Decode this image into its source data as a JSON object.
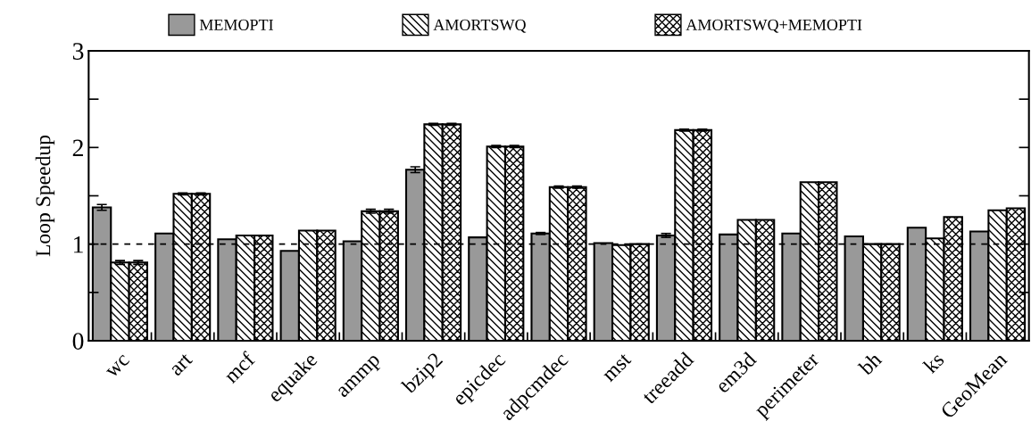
{
  "chart_data": {
    "type": "bar",
    "ylabel": "Loop Speedup",
    "categories": [
      "wc",
      "art",
      "mcf",
      "equake",
      "ammp",
      "bzip2",
      "epicdec",
      "adpcmdec",
      "mst",
      "treeadd",
      "em3d",
      "perimeter",
      "bh",
      "ks",
      "GeoMean"
    ],
    "series": [
      {
        "name": "MEMOPTI",
        "color": "#999999",
        "values": [
          1.38,
          1.11,
          1.05,
          0.93,
          1.03,
          1.77,
          1.07,
          1.11,
          1.01,
          1.09,
          1.1,
          1.11,
          1.08,
          1.17,
          1.13
        ],
        "errors": [
          0.03,
          null,
          null,
          null,
          null,
          0.03,
          null,
          0.01,
          null,
          0.02,
          null,
          null,
          null,
          null,
          null
        ]
      },
      {
        "name": "AMORTSWQ",
        "color": "#000000",
        "values": [
          0.81,
          1.52,
          1.09,
          1.14,
          1.34,
          2.24,
          2.01,
          1.59,
          0.99,
          2.18,
          1.25,
          1.64,
          1.0,
          1.06,
          1.35
        ],
        "errors": [
          0.02,
          0.01,
          null,
          null,
          0.02,
          0.01,
          0.01,
          0.01,
          null,
          0.01,
          null,
          null,
          null,
          null,
          null
        ]
      },
      {
        "name": "AMORTSWQ+MEMOPTI",
        "color": "#000000",
        "values": [
          0.81,
          1.52,
          1.09,
          1.14,
          1.34,
          2.24,
          2.01,
          1.59,
          1.0,
          2.18,
          1.25,
          1.64,
          1.0,
          1.28,
          1.37
        ],
        "errors": [
          0.02,
          0.01,
          null,
          null,
          0.02,
          0.01,
          0.01,
          0.01,
          null,
          0.01,
          null,
          null,
          null,
          null,
          null
        ]
      }
    ],
    "ylim": [
      0,
      3
    ],
    "yticks": [
      0,
      {
        "value": 0.5,
        "label": null
      },
      1,
      {
        "value": 1.5,
        "label": null
      },
      2,
      {
        "value": 2.5,
        "label": null
      },
      3
    ],
    "ref_lines": [
      {
        "axis": "y",
        "value": 1,
        "line_style": "dashed",
        "color": "#000000"
      }
    ],
    "legend": "top",
    "grid": false
  }
}
